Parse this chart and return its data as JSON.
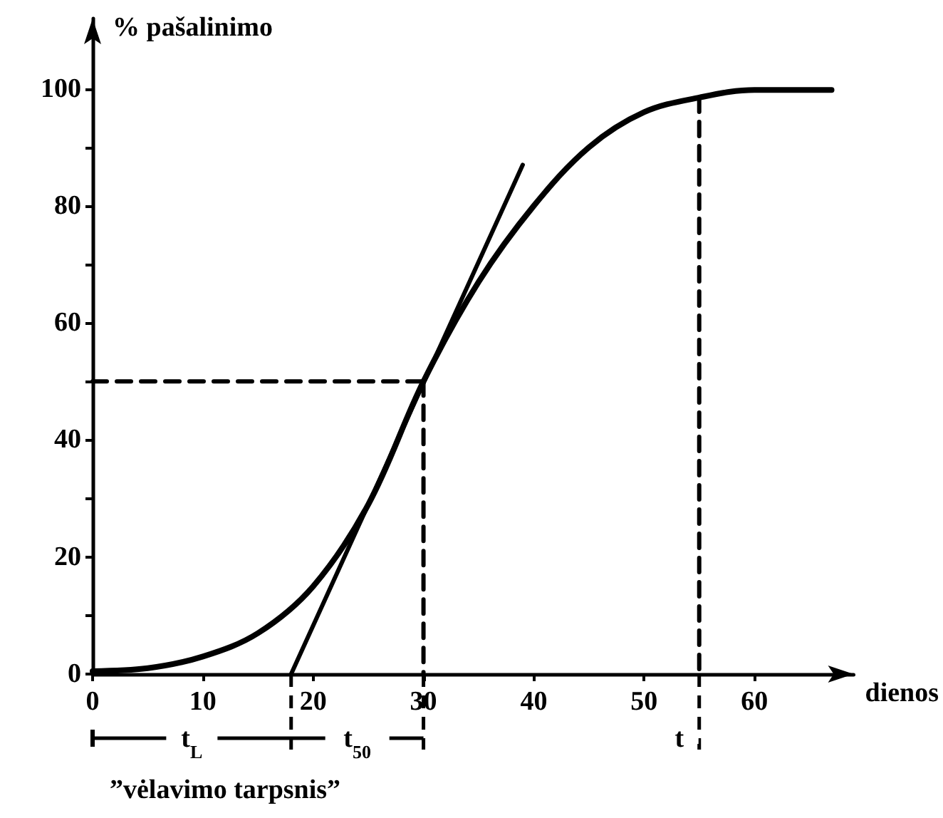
{
  "chart_data": {
    "type": "line",
    "xlabel": "dienos",
    "ylabel": "% pašalinimo",
    "xlim": [
      0,
      69
    ],
    "ylim": [
      0,
      112
    ],
    "xticks": [
      0,
      10,
      20,
      30,
      40,
      50,
      60
    ],
    "yticks": [
      0,
      {
        "value": 10,
        "label": null
      },
      20,
      {
        "value": 30,
        "label": null
      },
      40,
      {
        "value": 50,
        "label": null
      },
      60,
      {
        "value": 70,
        "label": null
      },
      80,
      {
        "value": 90,
        "label": null
      },
      100
    ],
    "marker": "none",
    "grid": false,
    "series": [
      {
        "color": "#000000",
        "line_style": "solid",
        "x": [
          0,
          5,
          10,
          15,
          20,
          25,
          30,
          35,
          40,
          45,
          50,
          55,
          60,
          67
        ],
        "values": [
          0.5,
          1,
          3,
          7,
          15,
          29,
          50,
          67,
          80,
          90,
          96,
          98.5,
          99.8,
          99.8
        ]
      },
      {
        "color": "#000000",
        "line_style": "solid",
        "x": [
          18,
          39
        ],
        "values": [
          0,
          87
        ]
      },
      {
        "color": "#000000",
        "line_style": "dashed",
        "x": [
          0,
          30
        ],
        "values": [
          50,
          50
        ]
      },
      {
        "color": "#000000",
        "line_style": "dashed",
        "x": [
          30,
          30
        ],
        "values": [
          50,
          0
        ]
      },
      {
        "color": "#000000",
        "line_style": "dashed",
        "x": [
          55,
          55
        ],
        "values": [
          98.5,
          0
        ]
      }
    ],
    "annotations": [
      "t$_{L}$",
      "t$_{50}$",
      "t",
      "”vėlavimo tarpsnis”"
    ]
  }
}
